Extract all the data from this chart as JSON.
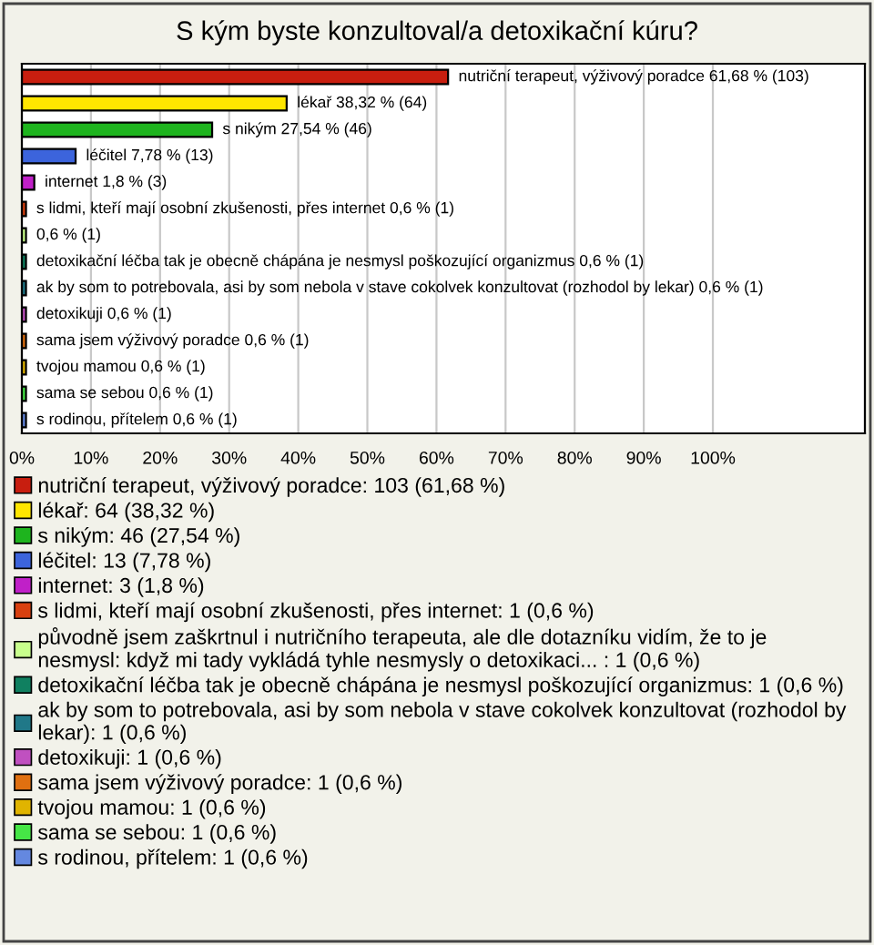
{
  "chart_data": {
    "type": "bar",
    "orientation": "horizontal",
    "title": "S kým byste konzultoval/a detoxikační kúru?",
    "categories": [
      "nutriční terapeut, výživový poradce",
      "lékař",
      "s nikým",
      "léčitel",
      "internet",
      "s lidmi, kteří mají osobní zkušenosti, přes internet",
      null,
      "detoxikační léčba tak je obecně chápána je nesmysl poškozující organizmus",
      "ak by som to potrebovala, asi by som nebola v stave cokolvek konzultovat (rozhodol by lekar)",
      "detoxikuji",
      "sama jsem výživový poradce",
      "tvojou mamou",
      "sama se sebou",
      "s rodinou, přítelem"
    ],
    "values": [
      61.68,
      38.32,
      27.54,
      7.78,
      1.8,
      0.6,
      0.6,
      0.6,
      0.6,
      0.6,
      0.6,
      0.6,
      0.6,
      0.6
    ],
    "value_labels": [
      "61,68 % (103)",
      "38,32 % (64)",
      "27,54 % (46)",
      "7,78 % (13)",
      "1,8 % (3)",
      "0,6 % (1)",
      "0,6 % (1)",
      "0,6 % (1)",
      "0,6 % (1)",
      "0,6 % (1)",
      "0,6 % (1)",
      "0,6 % (1)",
      "0,6 % (1)",
      "0,6 % (1)"
    ],
    "colors": [
      "#c81e0f",
      "#ffe600",
      "#1eb41e",
      "#3c64dc",
      "#c020c8",
      "#d8400f",
      "#c8ff8c",
      "#108060",
      "#207888",
      "#c050c0",
      "#e07010",
      "#e0b400",
      "#46e646",
      "#6488e0"
    ],
    "xlim": [
      0,
      122
    ],
    "xticks": [
      {
        "value": 0,
        "label": "0%"
      },
      {
        "value": 10,
        "label": "10%"
      },
      {
        "value": 20,
        "label": "20%"
      },
      {
        "value": 30,
        "label": "30%"
      },
      {
        "value": 40,
        "label": "40%"
      },
      {
        "value": 50,
        "label": "50%"
      },
      {
        "value": 60,
        "label": "60%"
      },
      {
        "value": 70,
        "label": "70%"
      },
      {
        "value": 80,
        "label": "80%"
      },
      {
        "value": 90,
        "label": "90%"
      },
      {
        "value": 100,
        "label": "100%"
      }
    ],
    "tick_labels": "x",
    "grid": "x",
    "annotations": [
      "nutriční terapeut, výživový poradce: 103 (61,68 %)",
      "lékař: 64 (38,32 %)",
      "s nikým: 46 (27,54 %)",
      "léčitel: 13 (7,78 %)",
      "internet: 3 (1,8 %)",
      "s lidmi, kteří mají osobní zkušenosti, přes internet: 1 (0,6 %)",
      "původně jsem zaškrtnul i nutričního terapeuta, ale dle dotazníku vidím, že to je nesmysl: když mi tady vykládá tyhle nesmysly o detoxikaci... : 1 (0,6 %)",
      "detoxikační léčba tak je obecně chápána je nesmysl poškozující organizmus: 1 (0,6 %)",
      "ak by som to potrebovala, asi by som nebola v stave cokolvek konzultovat (rozhodol by lekar): 1 (0,6 %)",
      "detoxikuji: 1 (0,6 %)",
      "sama jsem výživový poradce: 1 (0,6 %)",
      "tvojou mamou: 1 (0,6 %)",
      "sama se sebou: 1 (0,6 %)",
      "s rodinou, přítelem: 1 (0,6 %)"
    ]
  }
}
